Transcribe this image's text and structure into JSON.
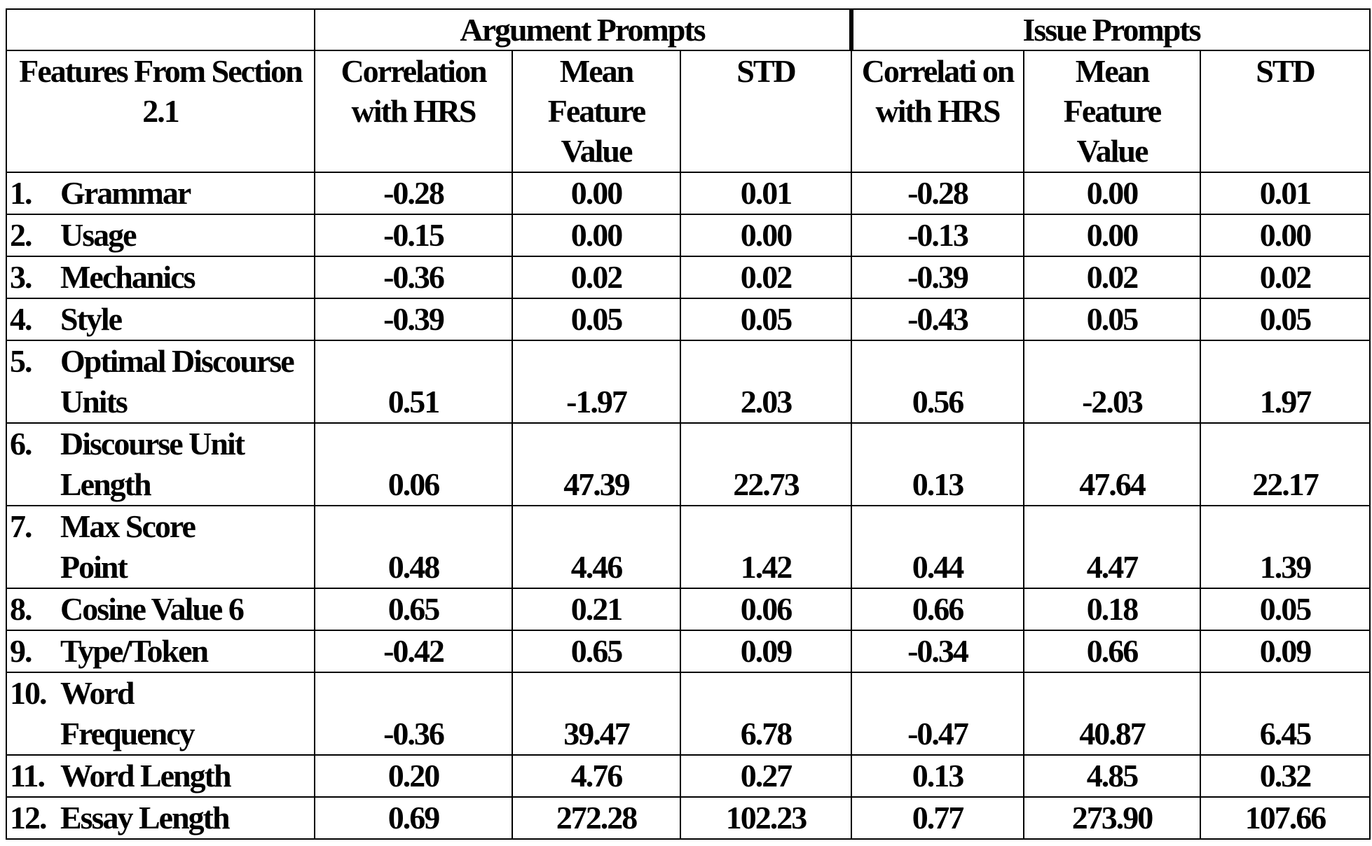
{
  "table": {
    "group_headers": {
      "argument": "Argument Prompts",
      "issue": "Issue Prompts"
    },
    "column_headers": {
      "feature": "Features From Section 2.1",
      "arg_corr": "Correlation with HRS",
      "arg_mean": "Mean Feature Value",
      "arg_std": "STD",
      "iss_corr": "Correlati on with HRS",
      "iss_mean": "Mean Feature Value",
      "iss_std": "STD"
    },
    "rows": [
      {
        "num": "1.",
        "feature": "Grammar",
        "arg_corr": "-0.28",
        "arg_mean": "0.00",
        "arg_std": "0.01",
        "iss_corr": "-0.28",
        "iss_mean": "0.00",
        "iss_std": "0.01"
      },
      {
        "num": "2.",
        "feature": "Usage",
        "arg_corr": "-0.15",
        "arg_mean": "0.00",
        "arg_std": "0.00",
        "iss_corr": "-0.13",
        "iss_mean": "0.00",
        "iss_std": "0.00"
      },
      {
        "num": "3.",
        "feature": "Mechanics",
        "arg_corr": "-0.36",
        "arg_mean": "0.02",
        "arg_std": "0.02",
        "iss_corr": "-0.39",
        "iss_mean": "0.02",
        "iss_std": "0.02"
      },
      {
        "num": "4.",
        "feature": "Style",
        "arg_corr": "-0.39",
        "arg_mean": "0.05",
        "arg_std": "0.05",
        "iss_corr": "-0.43",
        "iss_mean": "0.05",
        "iss_std": "0.05"
      },
      {
        "num": "5.",
        "feature": "Optimal Discourse Units",
        "arg_corr": "0.51",
        "arg_mean": "-1.97",
        "arg_std": "2.03",
        "iss_corr": "0.56",
        "iss_mean": "-2.03",
        "iss_std": "1.97"
      },
      {
        "num": "6.",
        "feature": "Discourse Unit Length",
        "arg_corr": "0.06",
        "arg_mean": "47.39",
        "arg_std": "22.73",
        "iss_corr": "0.13",
        "iss_mean": "47.64",
        "iss_std": "22.17"
      },
      {
        "num": "7.",
        "feature": "Max Score Point",
        "arg_corr": "0.48",
        "arg_mean": "4.46",
        "arg_std": "1.42",
        "iss_corr": "0.44",
        "iss_mean": "4.47",
        "iss_std": "1.39"
      },
      {
        "num": "8.",
        "feature": "Cosine Value 6",
        "arg_corr": "0.65",
        "arg_mean": "0.21",
        "arg_std": "0.06",
        "iss_corr": "0.66",
        "iss_mean": "0.18",
        "iss_std": "0.05"
      },
      {
        "num": "9.",
        "feature": "Type/Token",
        "arg_corr": "-0.42",
        "arg_mean": "0.65",
        "arg_std": "0.09",
        "iss_corr": "-0.34",
        "iss_mean": "0.66",
        "iss_std": "0.09"
      },
      {
        "num": "10.",
        "feature": "Word Frequency",
        "arg_corr": "-0.36",
        "arg_mean": "39.47",
        "arg_std": "6.78",
        "iss_corr": "-0.47",
        "iss_mean": "40.87",
        "iss_std": "6.45"
      },
      {
        "num": "11.",
        "feature": "Word Length",
        "arg_corr": "0.20",
        "arg_mean": "4.76",
        "arg_std": "0.27",
        "iss_corr": "0.13",
        "iss_mean": "4.85",
        "iss_std": "0.32"
      },
      {
        "num": "12.",
        "feature": "Essay Length",
        "arg_corr": "0.69",
        "arg_mean": "272.28",
        "arg_std": "102.23",
        "iss_corr": "0.77",
        "iss_mean": "273.90",
        "iss_std": "107.66"
      }
    ]
  }
}
